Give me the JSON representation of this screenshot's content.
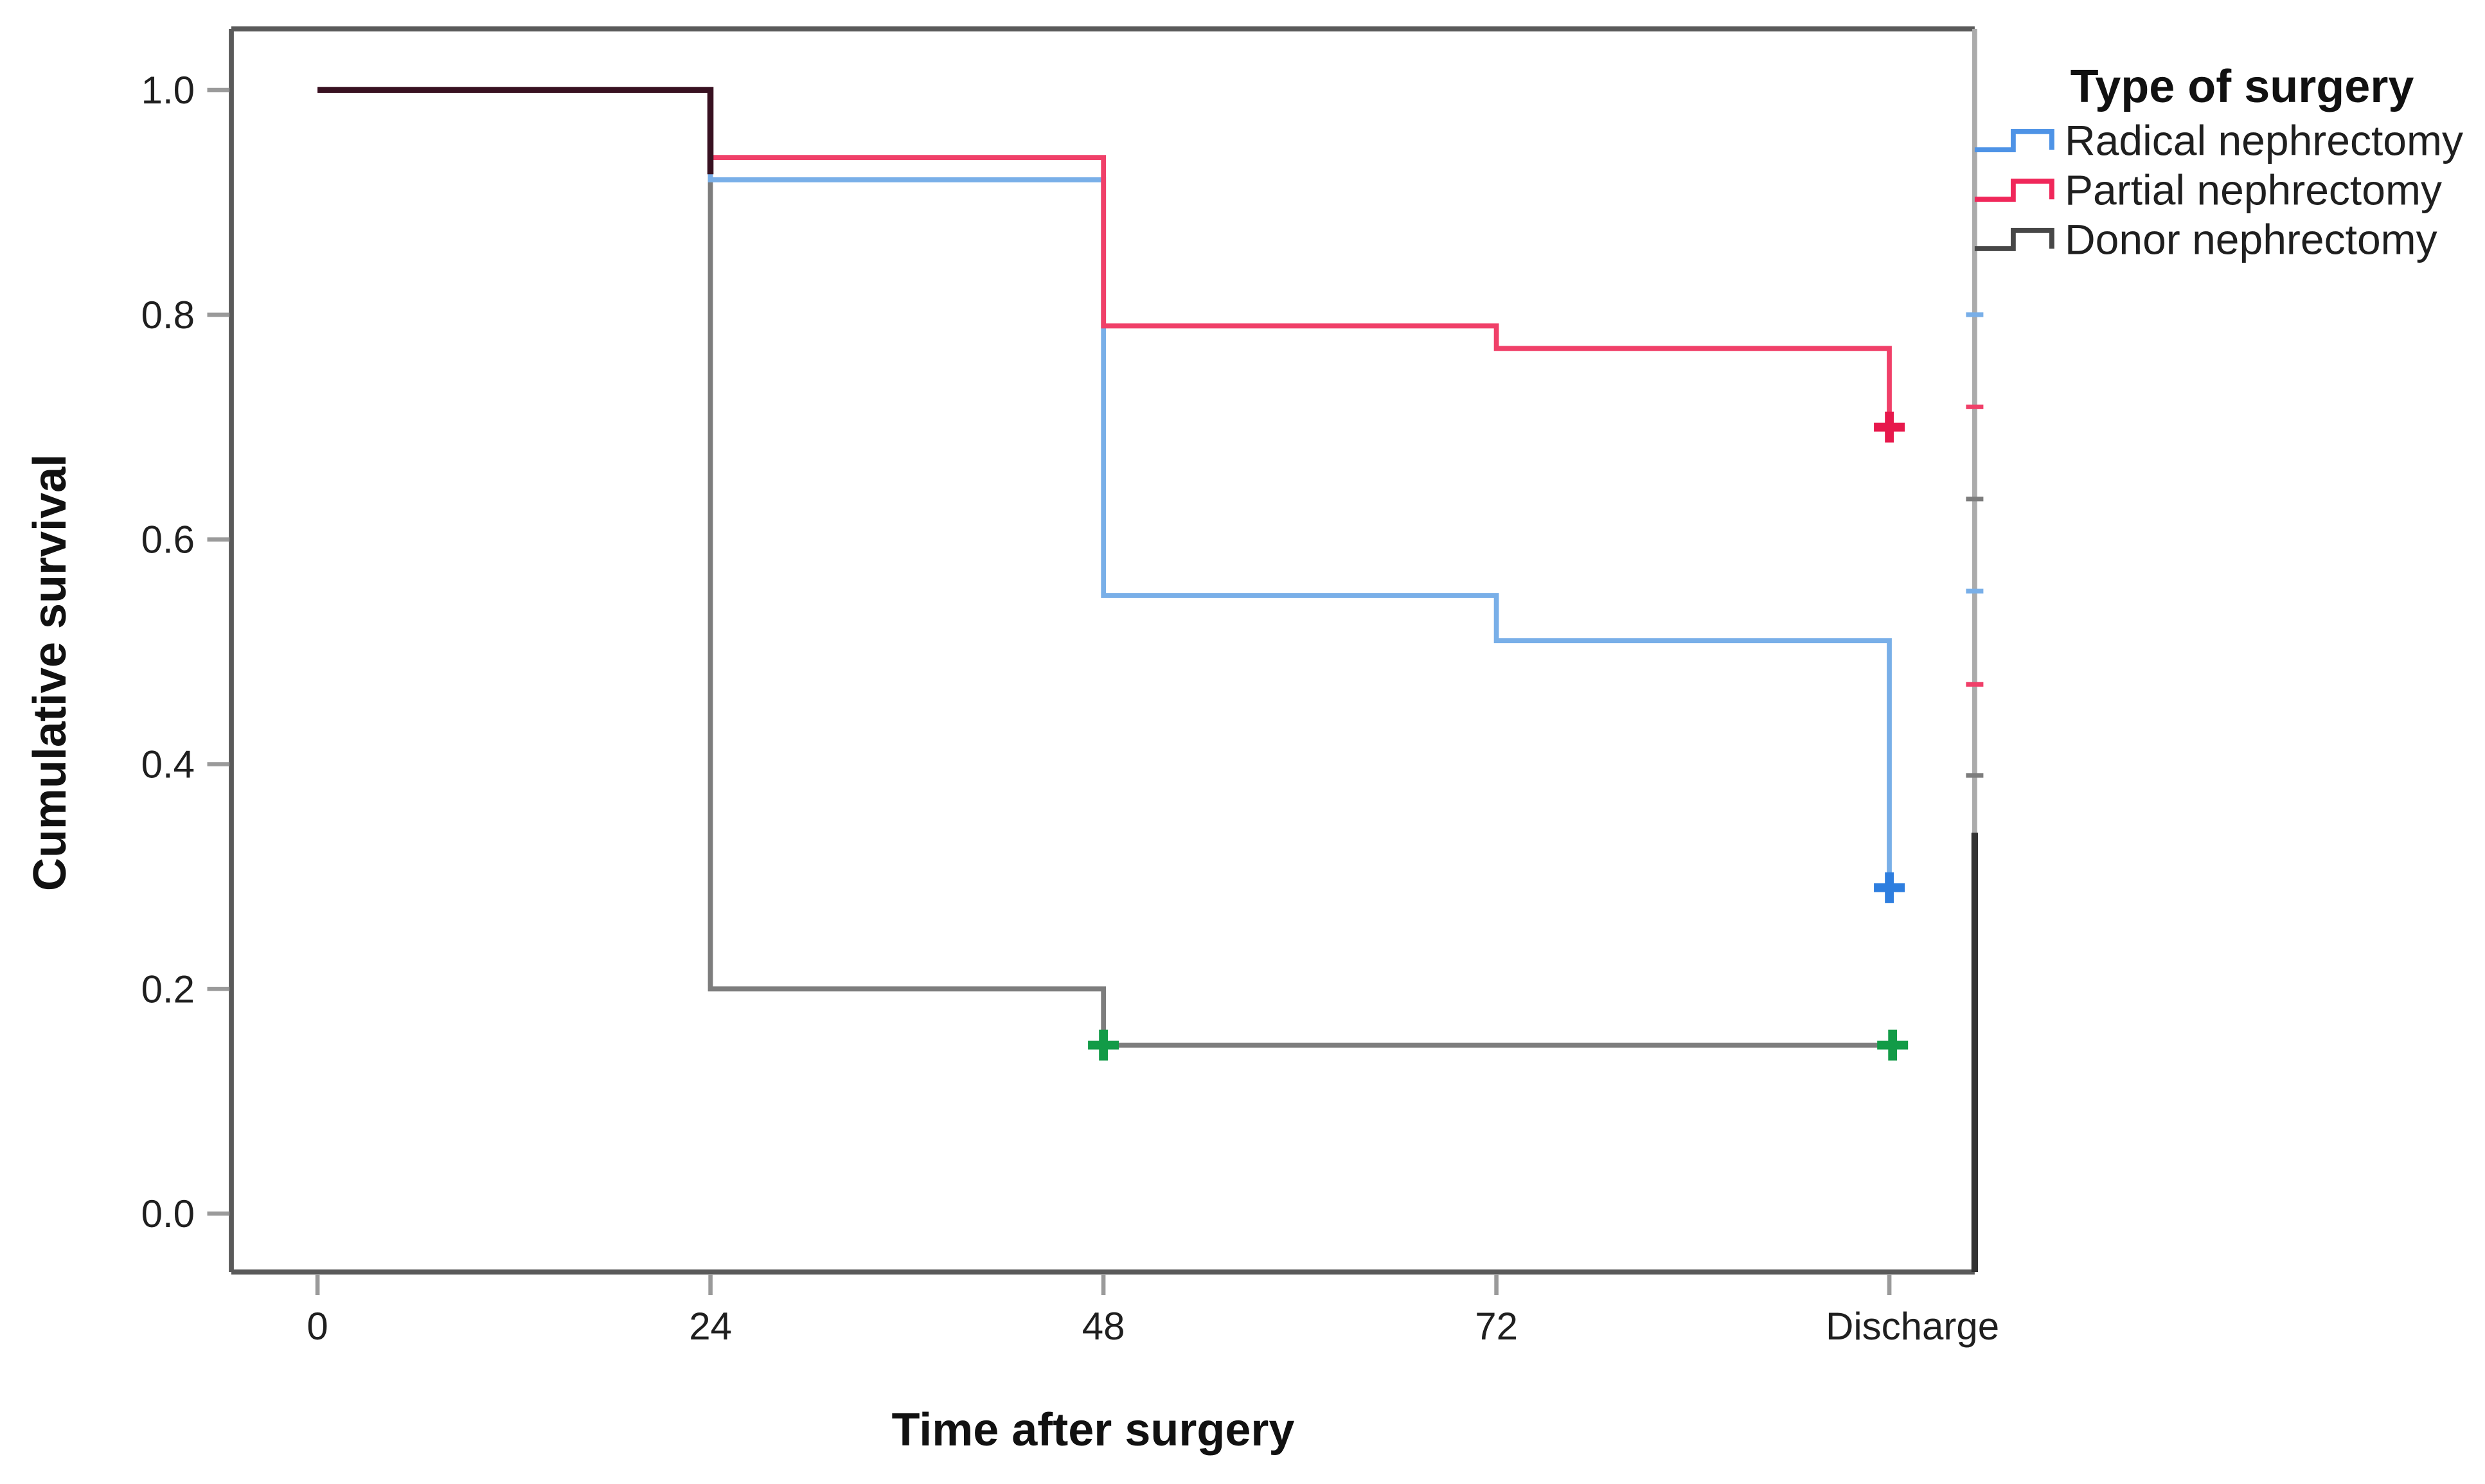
{
  "figure": {
    "background": "#FFFFFF",
    "legend": {
      "title": "Type of surgery",
      "items": [
        {
          "key": "radical",
          "label": "Radical nephrectomy"
        },
        {
          "key": "partial",
          "label": "Partial nephrectomy"
        },
        {
          "key": "donor",
          "label": "Donor nephrectomy"
        }
      ]
    }
  },
  "chart_data": {
    "type": "line",
    "subtype": "kaplan-meier-step-survival",
    "title": "",
    "xlabel": "Time after surgery",
    "ylabel": "Cumulative survival",
    "x_tick_labels": [
      "0",
      "24",
      "48",
      "72",
      "Discharge"
    ],
    "x_tick_hours": [
      0,
      24,
      48,
      72,
      96
    ],
    "y_tick_labels": [
      "1.0",
      "0.8",
      "0.6",
      "0.4",
      "0.2",
      "0.0"
    ],
    "y_tick_values": [
      1.0,
      0.8,
      0.6,
      0.4,
      0.2,
      0.0
    ],
    "xlim_hours": [
      -5.3,
      101.3
    ],
    "ylim": [
      -0.052,
      1.054
    ],
    "grid": false,
    "legend_position": "top-right-outside",
    "axis_color": "#5A5A5A",
    "tick_color": "#9A9A9A",
    "series": [
      {
        "key": "radical",
        "name": "Radical nephrectomy",
        "color": "#79AFE8",
        "swatch_color": "#4E93E6",
        "censor_color": "#2E7EDF",
        "steps": [
          [
            0,
            1.0
          ],
          [
            24,
            1.0
          ],
          [
            24,
            0.92
          ],
          [
            48,
            0.92
          ],
          [
            48,
            0.55
          ],
          [
            72,
            0.55
          ],
          [
            72,
            0.51
          ],
          [
            96,
            0.51
          ],
          [
            96,
            0.29
          ]
        ],
        "censors": [
          [
            96,
            0.29
          ]
        ]
      },
      {
        "key": "partial",
        "name": "Partial nephrectomy",
        "color": "#F04069",
        "swatch_color": "#F0275A",
        "censor_color": "#E7184C",
        "steps": [
          [
            0,
            1.0
          ],
          [
            24,
            1.0
          ],
          [
            24,
            0.94
          ],
          [
            48,
            0.94
          ],
          [
            48,
            0.79
          ],
          [
            72,
            0.79
          ],
          [
            72,
            0.77
          ],
          [
            96,
            0.77
          ],
          [
            96,
            0.7
          ]
        ],
        "censors": [
          [
            96,
            0.7
          ]
        ]
      },
      {
        "key": "donor",
        "name": "Donor nephrectomy",
        "color": "#7D7D7D",
        "swatch_color": "#474747",
        "censor_color": "#129B47",
        "steps": [
          [
            0,
            1.0
          ],
          [
            24,
            1.0
          ],
          [
            24,
            0.2
          ],
          [
            48,
            0.2
          ],
          [
            48,
            0.15
          ],
          [
            96.5,
            0.15
          ]
        ],
        "censors": [
          [
            48,
            0.15
          ],
          [
            96.2,
            0.15
          ]
        ]
      }
    ],
    "overlap_segment": {
      "color": "#381121",
      "steps": [
        [
          0,
          1.0
        ],
        [
          24,
          1.0
        ],
        [
          24,
          0.925
        ]
      ]
    },
    "right_border_marks": [
      {
        "series": "radical",
        "value": 0.8
      },
      {
        "series": "partial",
        "value": 0.718
      },
      {
        "series": "donor",
        "value": 0.636
      },
      {
        "series": "radical",
        "value": 0.554
      },
      {
        "series": "partial",
        "value": 0.471
      },
      {
        "series": "donor",
        "value": 0.39
      }
    ],
    "right_border_dark_segment": {
      "from_value": 0.339,
      "to_value": -0.052,
      "color": "#333333"
    },
    "right_border_light_color": "#ABABAB"
  }
}
